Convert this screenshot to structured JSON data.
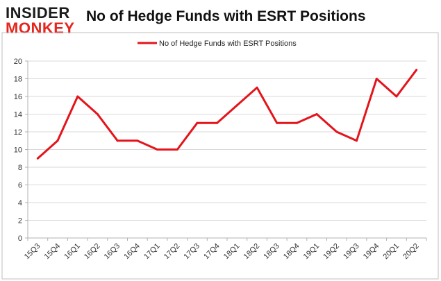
{
  "logo": {
    "line1": "INSIDER",
    "line2": "MONKEY"
  },
  "colors": {
    "series": "#e4141b",
    "brand_dark": "#1b1b1b",
    "brand_red": "#e4261f",
    "grid": "#d9d9d9",
    "frame": "#bfbfbf"
  },
  "chart_data": {
    "type": "line",
    "title": "No of Hedge Funds with ESRT Positions",
    "xlabel": "",
    "ylabel": "",
    "categories": [
      "15Q3",
      "15Q4",
      "16Q1",
      "16Q2",
      "16Q3",
      "16Q4",
      "17Q1",
      "17Q2",
      "17Q3",
      "17Q4",
      "18Q1",
      "18Q2",
      "18Q3",
      "18Q4",
      "19Q1",
      "19Q2",
      "19Q3",
      "19Q4",
      "20Q1",
      "20Q2"
    ],
    "series": [
      {
        "name": "No of Hedge Funds with ESRT Positions",
        "values": [
          9,
          11,
          16,
          14,
          11,
          11,
          10,
          10,
          13,
          13,
          15,
          17,
          13,
          13,
          14,
          12,
          11,
          18,
          16,
          19
        ]
      }
    ],
    "ylim": [
      0,
      20
    ],
    "yticks": [
      0,
      2,
      4,
      6,
      8,
      10,
      12,
      14,
      16,
      18,
      20
    ],
    "grid": true,
    "legend_position": "top-center"
  }
}
